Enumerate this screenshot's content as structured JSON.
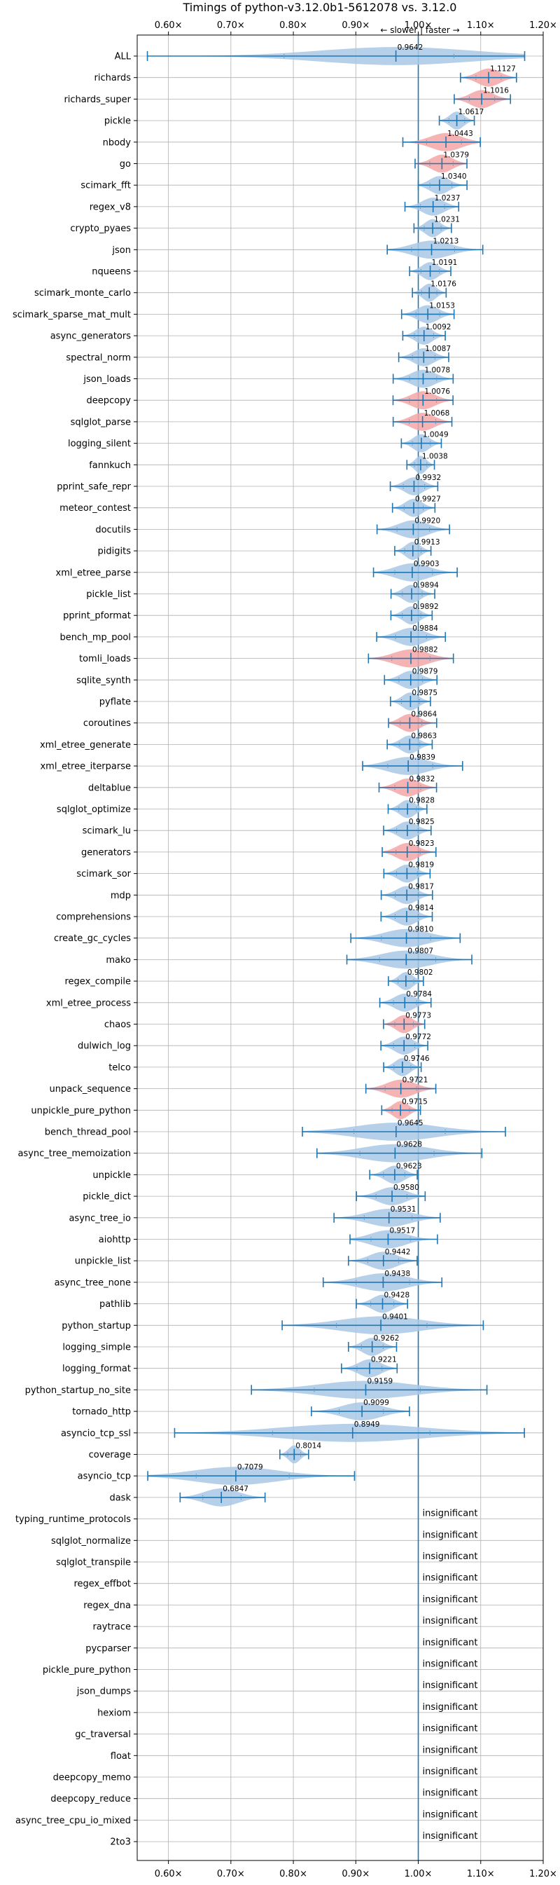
{
  "chart_data": {
    "type": "violin",
    "title": "Timings of python-v3.12.0b1-5612078 vs. 3.12.0",
    "x_ticks": [
      "0.60×",
      "0.70×",
      "0.80×",
      "0.90×",
      "1.00×",
      "1.10×",
      "1.20×"
    ],
    "x_tick_values": [
      0.6,
      0.7,
      0.8,
      0.9,
      1.0,
      1.1,
      1.2
    ],
    "xlim": [
      0.55,
      1.2
    ],
    "direction_note": "← slower | faster →",
    "insignificant_label": "insignificant",
    "grid": true,
    "colors": {
      "faster": "#f4a6a6",
      "slower": "#a9c8e6",
      "line": "#1f77b4"
    },
    "benchmarks": [
      {
        "name": "ALL",
        "value": 0.9642,
        "label": "0.9642",
        "min": 0.5663,
        "max": 1.1703,
        "color": "slower"
      },
      {
        "name": "richards",
        "value": 1.1127,
        "label": "1.1127",
        "min": 1.0676,
        "max": 1.1572,
        "color": "faster"
      },
      {
        "name": "richards_super",
        "value": 1.1016,
        "label": "1.1016",
        "min": 1.0576,
        "max": 1.1476,
        "color": "faster"
      },
      {
        "name": "pickle",
        "value": 1.0617,
        "label": "1.0617",
        "min": 1.0337,
        "max": 1.0897,
        "color": "slower"
      },
      {
        "name": "nbody",
        "value": 1.0443,
        "label": "1.0443",
        "min": 0.9753,
        "max": 1.0993,
        "color": "faster"
      },
      {
        "name": "go",
        "value": 1.0379,
        "label": "1.0379",
        "min": 0.9949,
        "max": 1.0779,
        "color": "faster"
      },
      {
        "name": "scimark_fft",
        "value": 1.034,
        "label": "1.0340",
        "min": 1.0,
        "max": 1.078,
        "color": "slower"
      },
      {
        "name": "regex_v8",
        "value": 1.0237,
        "label": "1.0237",
        "min": 0.9787,
        "max": 1.0647,
        "color": "slower"
      },
      {
        "name": "crypto_pyaes",
        "value": 1.0231,
        "label": "1.0231",
        "min": 0.9931,
        "max": 1.0531,
        "color": "slower"
      },
      {
        "name": "json",
        "value": 1.0213,
        "label": "1.0213",
        "min": 0.9503,
        "max": 1.1033,
        "color": "slower"
      },
      {
        "name": "nqueens",
        "value": 1.0191,
        "label": "1.0191",
        "min": 0.9861,
        "max": 1.0521,
        "color": "slower"
      },
      {
        "name": "scimark_monte_carlo",
        "value": 1.0176,
        "label": "1.0176",
        "min": 0.9906,
        "max": 1.0446,
        "color": "slower"
      },
      {
        "name": "scimark_sparse_mat_mult",
        "value": 1.0153,
        "label": "1.0153",
        "min": 0.9733,
        "max": 1.0573,
        "color": "slower"
      },
      {
        "name": "async_generators",
        "value": 1.0092,
        "label": "1.0092",
        "min": 0.9752,
        "max": 1.0432,
        "color": "slower"
      },
      {
        "name": "spectral_norm",
        "value": 1.0087,
        "label": "1.0087",
        "min": 0.9687,
        "max": 1.0487,
        "color": "slower"
      },
      {
        "name": "json_loads",
        "value": 1.0078,
        "label": "1.0078",
        "min": 0.9598,
        "max": 1.0558,
        "color": "slower"
      },
      {
        "name": "deepcopy",
        "value": 1.0076,
        "label": "1.0076",
        "min": 0.9596,
        "max": 1.0556,
        "color": "faster"
      },
      {
        "name": "sqlglot_parse",
        "value": 1.0068,
        "label": "1.0068",
        "min": 0.9598,
        "max": 1.0538,
        "color": "faster"
      },
      {
        "name": "logging_silent",
        "value": 1.0049,
        "label": "1.0049",
        "min": 0.9729,
        "max": 1.0369,
        "color": "slower"
      },
      {
        "name": "fannkuch",
        "value": 1.0038,
        "label": "1.0038",
        "min": 0.9818,
        "max": 1.0258,
        "color": "slower"
      },
      {
        "name": "pprint_safe_repr",
        "value": 0.9932,
        "label": "0.9932",
        "min": 0.9552,
        "max": 1.0312,
        "color": "slower"
      },
      {
        "name": "meteor_contest",
        "value": 0.9927,
        "label": "0.9927",
        "min": 0.9587,
        "max": 1.0267,
        "color": "slower"
      },
      {
        "name": "docutils",
        "value": 0.992,
        "label": "0.9920",
        "min": 0.934,
        "max": 1.05,
        "color": "slower"
      },
      {
        "name": "pidigits",
        "value": 0.9913,
        "label": "0.9913",
        "min": 0.9623,
        "max": 1.0203,
        "color": "slower"
      },
      {
        "name": "xml_etree_parse",
        "value": 0.9903,
        "label": "0.9903",
        "min": 0.9283,
        "max": 1.0623,
        "color": "slower"
      },
      {
        "name": "pickle_list",
        "value": 0.9894,
        "label": "0.9894",
        "min": 0.9564,
        "max": 1.0264,
        "color": "slower"
      },
      {
        "name": "pprint_pformat",
        "value": 0.9892,
        "label": "0.9892",
        "min": 0.9562,
        "max": 1.0222,
        "color": "slower"
      },
      {
        "name": "bench_mp_pool",
        "value": 0.9884,
        "label": "0.9884",
        "min": 0.9334,
        "max": 1.0434,
        "color": "slower"
      },
      {
        "name": "tomli_loads",
        "value": 0.9882,
        "label": "0.9882",
        "min": 0.9202,
        "max": 1.0562,
        "color": "faster"
      },
      {
        "name": "sqlite_synth",
        "value": 0.9879,
        "label": "0.9879",
        "min": 0.9459,
        "max": 1.0299,
        "color": "slower"
      },
      {
        "name": "pyflate",
        "value": 0.9875,
        "label": "0.9875",
        "min": 0.9555,
        "max": 1.0195,
        "color": "slower"
      },
      {
        "name": "coroutines",
        "value": 0.9864,
        "label": "0.9864",
        "min": 0.9524,
        "max": 1.0294,
        "color": "faster"
      },
      {
        "name": "xml_etree_generate",
        "value": 0.9863,
        "label": "0.9863",
        "min": 0.9503,
        "max": 1.0223,
        "color": "slower"
      },
      {
        "name": "xml_etree_iterparse",
        "value": 0.9839,
        "label": "0.9839",
        "min": 0.9109,
        "max": 1.0709,
        "color": "slower"
      },
      {
        "name": "deltablue",
        "value": 0.9832,
        "label": "0.9832",
        "min": 0.9372,
        "max": 1.0292,
        "color": "faster"
      },
      {
        "name": "sqlglot_optimize",
        "value": 0.9828,
        "label": "0.9828",
        "min": 0.9518,
        "max": 1.0138,
        "color": "slower"
      },
      {
        "name": "scimark_lu",
        "value": 0.9825,
        "label": "0.9825",
        "min": 0.9445,
        "max": 1.0205,
        "color": "slower"
      },
      {
        "name": "generators",
        "value": 0.9823,
        "label": "0.9823",
        "min": 0.9423,
        "max": 1.0283,
        "color": "faster"
      },
      {
        "name": "scimark_sor",
        "value": 0.9819,
        "label": "0.9819",
        "min": 0.9449,
        "max": 1.0189,
        "color": "slower"
      },
      {
        "name": "mdp",
        "value": 0.9817,
        "label": "0.9817",
        "min": 0.9407,
        "max": 1.0227,
        "color": "slower"
      },
      {
        "name": "comprehensions",
        "value": 0.9814,
        "label": "0.9814",
        "min": 0.9404,
        "max": 1.0224,
        "color": "slower"
      },
      {
        "name": "create_gc_cycles",
        "value": 0.981,
        "label": "0.9810",
        "min": 0.892,
        "max": 1.067,
        "color": "slower"
      },
      {
        "name": "mako",
        "value": 0.9807,
        "label": "0.9807",
        "min": 0.8857,
        "max": 1.0857,
        "color": "slower"
      },
      {
        "name": "regex_compile",
        "value": 0.9802,
        "label": "0.9802",
        "min": 0.9522,
        "max": 1.0082,
        "color": "slower"
      },
      {
        "name": "xml_etree_process",
        "value": 0.9784,
        "label": "0.9784",
        "min": 0.9384,
        "max": 1.0204,
        "color": "slower"
      },
      {
        "name": "chaos",
        "value": 0.9773,
        "label": "0.9773",
        "min": 0.9443,
        "max": 1.0103,
        "color": "faster"
      },
      {
        "name": "dulwich_log",
        "value": 0.9772,
        "label": "0.9772",
        "min": 0.9402,
        "max": 1.0152,
        "color": "slower"
      },
      {
        "name": "telco",
        "value": 0.9746,
        "label": "0.9746",
        "min": 0.9446,
        "max": 1.0046,
        "color": "slower"
      },
      {
        "name": "unpack_sequence",
        "value": 0.9721,
        "label": "0.9721",
        "min": 0.9161,
        "max": 1.0281,
        "color": "faster"
      },
      {
        "name": "unpickle_pure_python",
        "value": 0.9715,
        "label": "0.9715",
        "min": 0.9415,
        "max": 1.0035,
        "color": "faster"
      },
      {
        "name": "bench_thread_pool",
        "value": 0.9645,
        "label": "0.9645",
        "min": 0.8145,
        "max": 1.1395,
        "color": "slower"
      },
      {
        "name": "async_tree_memoization",
        "value": 0.9628,
        "label": "0.9628",
        "min": 0.8378,
        "max": 1.1018,
        "color": "slower"
      },
      {
        "name": "unpickle",
        "value": 0.9623,
        "label": "0.9623",
        "min": 0.9223,
        "max": 0.9983,
        "color": "slower"
      },
      {
        "name": "pickle_dict",
        "value": 0.958,
        "label": "0.9580",
        "min": 0.901,
        "max": 1.011,
        "color": "slower"
      },
      {
        "name": "async_tree_io",
        "value": 0.9531,
        "label": "0.9531",
        "min": 0.8651,
        "max": 1.0351,
        "color": "slower"
      },
      {
        "name": "aiohttp",
        "value": 0.9517,
        "label": "0.9517",
        "min": 0.8907,
        "max": 1.0307,
        "color": "slower"
      },
      {
        "name": "unpickle_list",
        "value": 0.9442,
        "label": "0.9442",
        "min": 0.8882,
        "max": 0.9982,
        "color": "slower"
      },
      {
        "name": "async_tree_none",
        "value": 0.9438,
        "label": "0.9438",
        "min": 0.8478,
        "max": 1.0378,
        "color": "slower"
      },
      {
        "name": "pathlib",
        "value": 0.9428,
        "label": "0.9428",
        "min": 0.9008,
        "max": 0.9828,
        "color": "slower"
      },
      {
        "name": "python_startup",
        "value": 0.9401,
        "label": "0.9401",
        "min": 0.7821,
        "max": 1.1041,
        "color": "slower"
      },
      {
        "name": "logging_simple",
        "value": 0.9262,
        "label": "0.9262",
        "min": 0.8882,
        "max": 0.9652,
        "color": "slower"
      },
      {
        "name": "logging_format",
        "value": 0.9221,
        "label": "0.9221",
        "min": 0.8771,
        "max": 0.9661,
        "color": "slower"
      },
      {
        "name": "python_startup_no_site",
        "value": 0.9159,
        "label": "0.9159",
        "min": 0.7329,
        "max": 1.1099,
        "color": "slower"
      },
      {
        "name": "tornado_http",
        "value": 0.9099,
        "label": "0.9099",
        "min": 0.8289,
        "max": 0.9859,
        "color": "slower"
      },
      {
        "name": "asyncio_tcp_ssl",
        "value": 0.8949,
        "label": "0.8949",
        "min": 0.6099,
        "max": 1.1699,
        "color": "slower"
      },
      {
        "name": "coverage",
        "value": 0.8014,
        "label": "0.8014",
        "min": 0.7784,
        "max": 0.8244,
        "color": "slower"
      },
      {
        "name": "asyncio_tcp",
        "value": 0.7079,
        "label": "0.7079",
        "min": 0.5669,
        "max": 0.8979,
        "color": "slower"
      },
      {
        "name": "dask",
        "value": 0.6847,
        "label": "0.6847",
        "min": 0.6187,
        "max": 0.7547,
        "color": "slower"
      },
      {
        "name": "typing_runtime_protocols",
        "insignificant": true
      },
      {
        "name": "sqlglot_normalize",
        "insignificant": true
      },
      {
        "name": "sqlglot_transpile",
        "insignificant": true
      },
      {
        "name": "regex_effbot",
        "insignificant": true
      },
      {
        "name": "regex_dna",
        "insignificant": true
      },
      {
        "name": "raytrace",
        "insignificant": true
      },
      {
        "name": "pycparser",
        "insignificant": true
      },
      {
        "name": "pickle_pure_python",
        "insignificant": true
      },
      {
        "name": "json_dumps",
        "insignificant": true
      },
      {
        "name": "hexiom",
        "insignificant": true
      },
      {
        "name": "gc_traversal",
        "insignificant": true
      },
      {
        "name": "float",
        "insignificant": true
      },
      {
        "name": "deepcopy_memo",
        "insignificant": true
      },
      {
        "name": "deepcopy_reduce",
        "insignificant": true
      },
      {
        "name": "async_tree_cpu_io_mixed",
        "insignificant": true
      },
      {
        "name": "2to3",
        "insignificant": true
      }
    ]
  }
}
